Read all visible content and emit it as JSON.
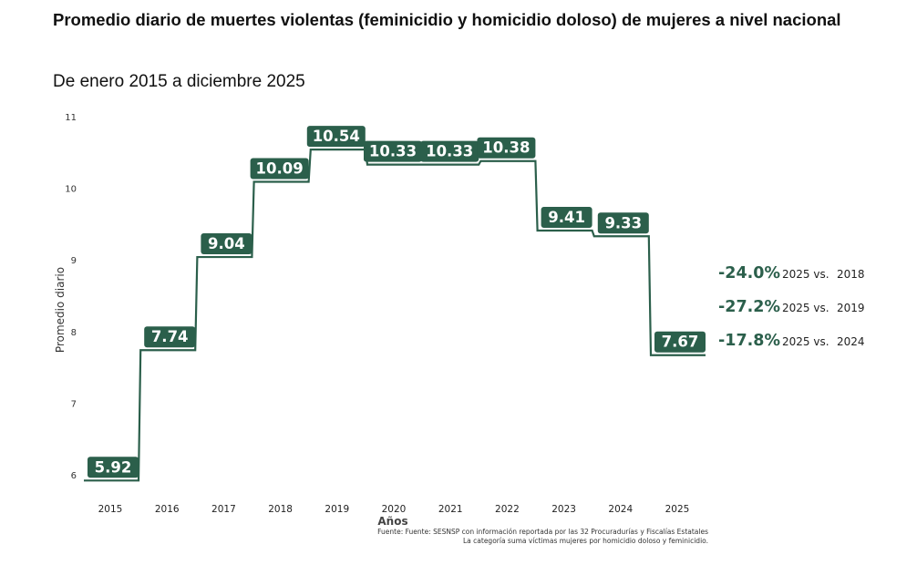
{
  "chart_data": {
    "type": "line",
    "step": true,
    "title": " Promedio diario de muertes violentas (feminicidio y homicidio doloso) de mujeres a nivel nacional",
    "subtitle": "De enero 2015 a diciembre 2025",
    "xlabel": "Años",
    "ylabel": "Promedio diario",
    "ylim": [
      6,
      11
    ],
    "yticks": [
      "6",
      "7",
      "8",
      "9",
      "10",
      "11"
    ],
    "categories": [
      "2015",
      "2016",
      "2017",
      "2018",
      "2019",
      "2020",
      "2021",
      "2022",
      "2023",
      "2024",
      "2025"
    ],
    "values": [
      5.92,
      7.74,
      9.04,
      10.09,
      10.54,
      10.33,
      10.33,
      10.38,
      9.41,
      9.33,
      7.67
    ],
    "data_labels": [
      "5.92",
      "7.74",
      "9.04",
      "10.09",
      "10.54",
      "10.33",
      "10.33",
      "10.38",
      "9.41",
      "9.33",
      "7.67"
    ],
    "grid": false,
    "color": "#2b5f4b",
    "annotations": [
      {
        "pct": "-24.0%",
        "text": "2025 vs.",
        "year": "2018"
      },
      {
        "pct": "-27.2%",
        "text": "2025 vs.",
        "year": "2019"
      },
      {
        "pct": "-17.8%",
        "text": "2025 vs.",
        "year": "2024"
      }
    ],
    "source": [
      "Fuente: Fuente: SESNSP con información reportada por las 32 Procuradurías y Fiscalías Estatales",
      "La categoría suma víctimas mujeres por homicidio doloso y feminicidio."
    ]
  }
}
